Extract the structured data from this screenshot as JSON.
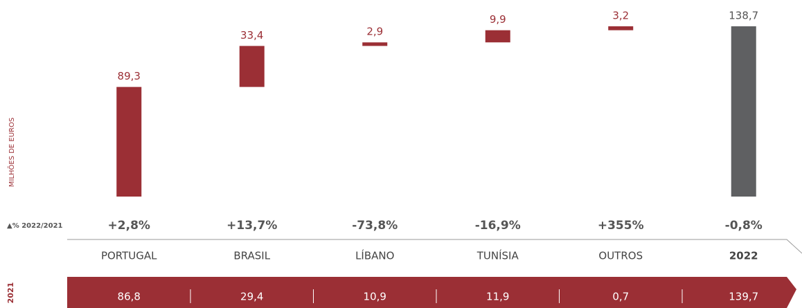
{
  "chart_data": {
    "type": "waterfall",
    "y_label": "MILHÕES DE EUROS",
    "categories": [
      "PORTUGAL",
      "BRASIL",
      "LÍBANO",
      "TUNÍSIA",
      "OUTROS",
      "2022"
    ],
    "values": [
      89.3,
      33.4,
      2.9,
      9.9,
      3.2,
      138.7
    ],
    "value_labels": [
      "89,3",
      "33,4",
      "2,9",
      "9,9",
      "3,2",
      "138,7"
    ],
    "measures": [
      "relative",
      "relative",
      "relative",
      "relative",
      "relative",
      "total"
    ],
    "color": "#9b2f35",
    "total_color": "#5f6062",
    "changes_label": "▲% 2022/2021",
    "changes": [
      "+2,8%",
      "+13,7%",
      "-73,8%",
      "-16,9%",
      "+355%",
      "-0,8%"
    ],
    "prior_year_label": "2021",
    "prior_year_values": [
      "86,8",
      "29,4",
      "10,9",
      "11,9",
      "0,7",
      "139,7"
    ]
  }
}
